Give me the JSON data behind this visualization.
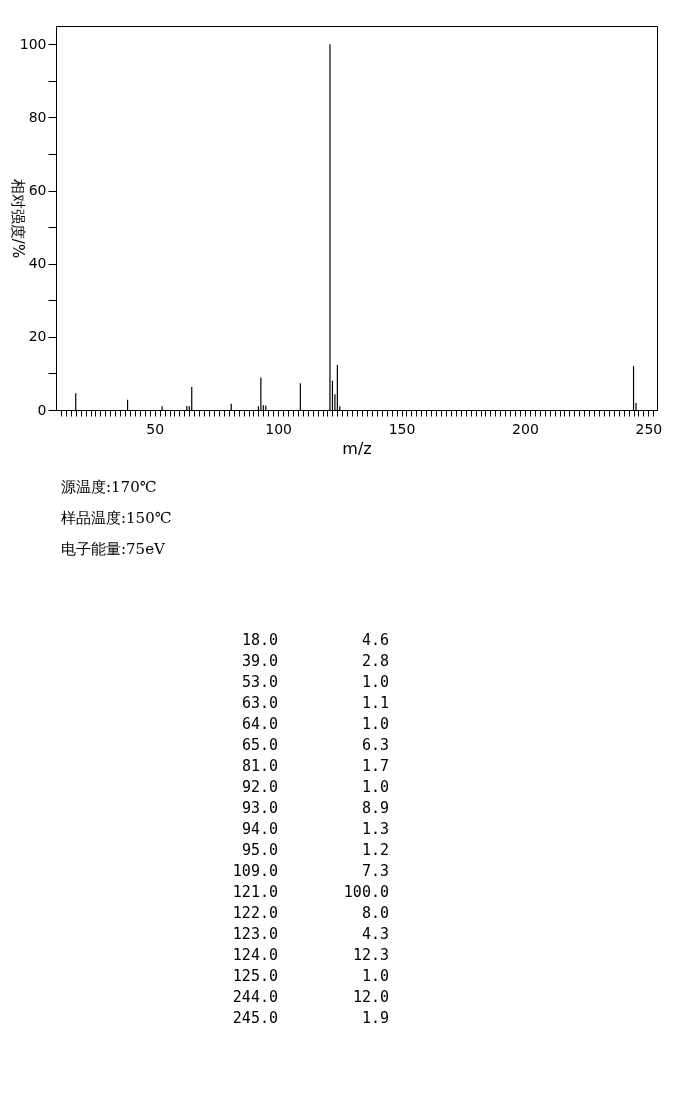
{
  "chart_data": {
    "type": "bar",
    "xlabel": "m/z",
    "ylabel": "相对强度/%",
    "x": [
      18,
      39,
      53,
      63,
      64,
      65,
      81,
      92,
      93,
      94,
      95,
      109,
      121,
      122,
      123,
      124,
      125,
      244,
      245
    ],
    "values": [
      4.6,
      2.8,
      1.0,
      1.1,
      1.0,
      6.3,
      1.7,
      1.0,
      8.9,
      1.3,
      1.2,
      7.3,
      100.0,
      8.0,
      4.3,
      12.3,
      1.0,
      12.0,
      1.9
    ],
    "color": "#000000",
    "xlim": [
      10,
      253.5
    ],
    "xticks": [
      {
        "value": 12,
        "label": null
      },
      {
        "value": 14,
        "label": null
      },
      {
        "value": 16,
        "label": null
      },
      {
        "value": 18,
        "label": null
      },
      {
        "value": 20,
        "label": null
      },
      {
        "value": 22,
        "label": null
      },
      {
        "value": 24,
        "label": null
      },
      {
        "value": 26,
        "label": null
      },
      {
        "value": 28,
        "label": null
      },
      {
        "value": 30,
        "label": null
      },
      {
        "value": 32,
        "label": null
      },
      {
        "value": 34,
        "label": null
      },
      {
        "value": 36,
        "label": null
      },
      {
        "value": 38,
        "label": null
      },
      {
        "value": 40,
        "label": null
      },
      {
        "value": 42,
        "label": null
      },
      {
        "value": 44,
        "label": null
      },
      {
        "value": 46,
        "label": null
      },
      {
        "value": 48,
        "label": null
      },
      50,
      {
        "value": 52,
        "label": null
      },
      {
        "value": 54,
        "label": null
      },
      {
        "value": 56,
        "label": null
      },
      {
        "value": 58,
        "label": null
      },
      {
        "value": 60,
        "label": null
      },
      {
        "value": 62,
        "label": null
      },
      {
        "value": 64,
        "label": null
      },
      {
        "value": 66,
        "label": null
      },
      {
        "value": 68,
        "label": null
      },
      {
        "value": 70,
        "label": null
      },
      {
        "value": 72,
        "label": null
      },
      {
        "value": 74,
        "label": null
      },
      {
        "value": 76,
        "label": null
      },
      {
        "value": 78,
        "label": null
      },
      {
        "value": 80,
        "label": null
      },
      {
        "value": 82,
        "label": null
      },
      {
        "value": 84,
        "label": null
      },
      {
        "value": 86,
        "label": null
      },
      {
        "value": 88,
        "label": null
      },
      {
        "value": 90,
        "label": null
      },
      {
        "value": 92,
        "label": null
      },
      {
        "value": 94,
        "label": null
      },
      {
        "value": 96,
        "label": null
      },
      {
        "value": 98,
        "label": null
      },
      100,
      {
        "value": 102,
        "label": null
      },
      {
        "value": 104,
        "label": null
      },
      {
        "value": 106,
        "label": null
      },
      {
        "value": 108,
        "label": null
      },
      {
        "value": 110,
        "label": null
      },
      {
        "value": 112,
        "label": null
      },
      {
        "value": 114,
        "label": null
      },
      {
        "value": 116,
        "label": null
      },
      {
        "value": 118,
        "label": null
      },
      {
        "value": 120,
        "label": null
      },
      {
        "value": 122,
        "label": null
      },
      {
        "value": 124,
        "label": null
      },
      {
        "value": 126,
        "label": null
      },
      {
        "value": 128,
        "label": null
      },
      {
        "value": 130,
        "label": null
      },
      {
        "value": 132,
        "label": null
      },
      {
        "value": 134,
        "label": null
      },
      {
        "value": 136,
        "label": null
      },
      {
        "value": 138,
        "label": null
      },
      {
        "value": 140,
        "label": null
      },
      {
        "value": 142,
        "label": null
      },
      {
        "value": 144,
        "label": null
      },
      {
        "value": 146,
        "label": null
      },
      {
        "value": 148,
        "label": null
      },
      150,
      {
        "value": 152,
        "label": null
      },
      {
        "value": 154,
        "label": null
      },
      {
        "value": 156,
        "label": null
      },
      {
        "value": 158,
        "label": null
      },
      {
        "value": 160,
        "label": null
      },
      {
        "value": 162,
        "label": null
      },
      {
        "value": 164,
        "label": null
      },
      {
        "value": 166,
        "label": null
      },
      {
        "value": 168,
        "label": null
      },
      {
        "value": 170,
        "label": null
      },
      {
        "value": 172,
        "label": null
      },
      {
        "value": 174,
        "label": null
      },
      {
        "value": 176,
        "label": null
      },
      {
        "value": 178,
        "label": null
      },
      {
        "value": 180,
        "label": null
      },
      {
        "value": 182,
        "label": null
      },
      {
        "value": 184,
        "label": null
      },
      {
        "value": 186,
        "label": null
      },
      {
        "value": 188,
        "label": null
      },
      {
        "value": 190,
        "label": null
      },
      {
        "value": 192,
        "label": null
      },
      {
        "value": 194,
        "label": null
      },
      {
        "value": 196,
        "label": null
      },
      {
        "value": 198,
        "label": null
      },
      200,
      {
        "value": 202,
        "label": null
      },
      {
        "value": 204,
        "label": null
      },
      {
        "value": 206,
        "label": null
      },
      {
        "value": 208,
        "label": null
      },
      {
        "value": 210,
        "label": null
      },
      {
        "value": 212,
        "label": null
      },
      {
        "value": 214,
        "label": null
      },
      {
        "value": 216,
        "label": null
      },
      {
        "value": 218,
        "label": null
      },
      {
        "value": 220,
        "label": null
      },
      {
        "value": 222,
        "label": null
      },
      {
        "value": 224,
        "label": null
      },
      {
        "value": 226,
        "label": null
      },
      {
        "value": 228,
        "label": null
      },
      {
        "value": 230,
        "label": null
      },
      {
        "value": 232,
        "label": null
      },
      {
        "value": 234,
        "label": null
      },
      {
        "value": 236,
        "label": null
      },
      {
        "value": 238,
        "label": null
      },
      {
        "value": 240,
        "label": null
      },
      {
        "value": 242,
        "label": null
      },
      {
        "value": 244,
        "label": null
      },
      {
        "value": 246,
        "label": null
      },
      {
        "value": 248,
        "label": null
      },
      250,
      {
        "value": 252,
        "label": null
      }
    ],
    "ylim": [
      0,
      105
    ],
    "yticks": [
      0,
      {
        "value": 10,
        "label": null
      },
      20,
      {
        "value": 30,
        "label": null
      },
      40,
      {
        "value": 50,
        "label": null
      },
      60,
      {
        "value": 70,
        "label": null
      },
      80,
      {
        "value": 90,
        "label": null
      },
      100
    ],
    "grid": false,
    "legend": false,
    "annotations": [
      "源温度:170℃",
      "样品温度:150℃",
      "电子能量:75eV",
      "18.0",
      "4.6",
      "39.0",
      "2.8",
      "53.0",
      "1.0",
      "63.0",
      "1.1",
      "64.0",
      "1.0",
      "65.0",
      "6.3",
      "81.0",
      "1.7",
      "92.0",
      "1.0",
      "93.0",
      "8.9",
      "94.0",
      "1.3",
      "95.0",
      "1.2",
      "109.0",
      "7.3",
      "121.0",
      "100.0",
      "122.0",
      "8.0",
      "123.0",
      "4.3",
      "124.0",
      "12.3",
      "125.0",
      "1.0",
      "244.0",
      "12.0",
      "245.0",
      "1.9"
    ]
  }
}
